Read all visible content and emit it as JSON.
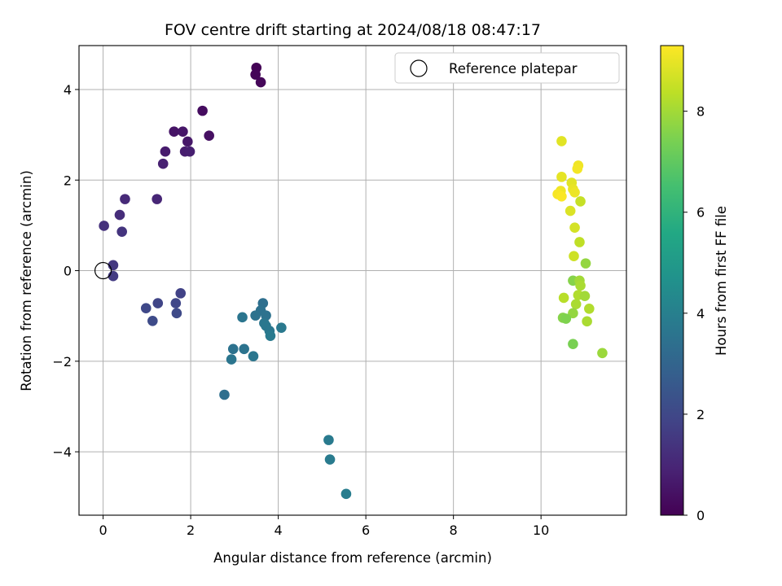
{
  "chart_data": {
    "type": "scatter",
    "title": "FOV centre drift starting at 2024/08/18 08:47:17",
    "xlabel": "Angular distance from reference (arcmin)",
    "ylabel": "Rotation from reference (arcmin)",
    "xlim": [
      -0.55,
      11.95
    ],
    "ylim": [
      -5.4,
      4.97
    ],
    "x_ticks": [
      0,
      2,
      4,
      6,
      8,
      10
    ],
    "y_ticks": [
      -4,
      -2,
      0,
      2,
      4
    ],
    "grid": true,
    "legend": {
      "placement": "upper right",
      "entries": [
        "Reference platepar"
      ]
    },
    "reference_point": {
      "x": 0,
      "y": 0,
      "label": "Reference platepar",
      "marker": "open-circle"
    },
    "colorbar": {
      "label": "Hours from first FF file",
      "range": [
        0,
        9.3
      ],
      "ticks": [
        0,
        2,
        4,
        6,
        8
      ],
      "colormap": "viridis"
    },
    "points": [
      {
        "x": 3.5,
        "y": 4.48,
        "c": 0.05
      },
      {
        "x": 3.48,
        "y": 4.33,
        "c": 0.1
      },
      {
        "x": 3.6,
        "y": 4.16,
        "c": 0.15
      },
      {
        "x": 2.27,
        "y": 3.53,
        "c": 0.3
      },
      {
        "x": 2.42,
        "y": 2.98,
        "c": 0.4
      },
      {
        "x": 1.62,
        "y": 3.07,
        "c": 0.5
      },
      {
        "x": 1.82,
        "y": 3.07,
        "c": 0.55
      },
      {
        "x": 1.93,
        "y": 2.85,
        "c": 0.6
      },
      {
        "x": 1.42,
        "y": 2.63,
        "c": 0.7
      },
      {
        "x": 1.87,
        "y": 2.63,
        "c": 0.75
      },
      {
        "x": 1.98,
        "y": 2.63,
        "c": 0.8
      },
      {
        "x": 1.37,
        "y": 2.36,
        "c": 0.85
      },
      {
        "x": 1.23,
        "y": 1.58,
        "c": 1.0
      },
      {
        "x": 0.5,
        "y": 1.58,
        "c": 1.1
      },
      {
        "x": 0.38,
        "y": 1.23,
        "c": 1.2
      },
      {
        "x": 0.02,
        "y": 0.99,
        "c": 1.3
      },
      {
        "x": 0.43,
        "y": 0.86,
        "c": 1.4
      },
      {
        "x": 0.23,
        "y": 0.12,
        "c": 1.5
      },
      {
        "x": 0.23,
        "y": -0.12,
        "c": 1.6
      },
      {
        "x": 1.77,
        "y": -0.5,
        "c": 1.8
      },
      {
        "x": 1.25,
        "y": -0.72,
        "c": 1.9
      },
      {
        "x": 1.66,
        "y": -0.72,
        "c": 1.95
      },
      {
        "x": 0.98,
        "y": -0.83,
        "c": 2.0
      },
      {
        "x": 1.68,
        "y": -0.94,
        "c": 2.05
      },
      {
        "x": 1.13,
        "y": -1.11,
        "c": 2.1
      },
      {
        "x": 3.65,
        "y": -0.72,
        "c": 3.4
      },
      {
        "x": 3.6,
        "y": -0.88,
        "c": 3.45
      },
      {
        "x": 3.48,
        "y": -0.99,
        "c": 3.5
      },
      {
        "x": 3.72,
        "y": -0.99,
        "c": 3.5
      },
      {
        "x": 3.18,
        "y": -1.03,
        "c": 3.6
      },
      {
        "x": 3.68,
        "y": -1.16,
        "c": 3.65
      },
      {
        "x": 3.72,
        "y": -1.22,
        "c": 3.7
      },
      {
        "x": 3.8,
        "y": -1.33,
        "c": 3.7
      },
      {
        "x": 4.07,
        "y": -1.26,
        "c": 3.75
      },
      {
        "x": 3.82,
        "y": -1.44,
        "c": 3.8
      },
      {
        "x": 2.97,
        "y": -1.73,
        "c": 3.5
      },
      {
        "x": 3.22,
        "y": -1.73,
        "c": 3.55
      },
      {
        "x": 2.93,
        "y": -1.96,
        "c": 3.6
      },
      {
        "x": 3.43,
        "y": -1.89,
        "c": 3.65
      },
      {
        "x": 2.77,
        "y": -2.74,
        "c": 3.4
      },
      {
        "x": 5.15,
        "y": -3.74,
        "c": 3.8
      },
      {
        "x": 5.18,
        "y": -4.17,
        "c": 3.85
      },
      {
        "x": 5.55,
        "y": -4.93,
        "c": 3.9
      },
      {
        "x": 10.47,
        "y": 2.86,
        "c": 8.9
      },
      {
        "x": 10.85,
        "y": 2.32,
        "c": 9.1
      },
      {
        "x": 10.83,
        "y": 2.25,
        "c": 9.15
      },
      {
        "x": 10.47,
        "y": 2.07,
        "c": 8.95
      },
      {
        "x": 10.7,
        "y": 1.94,
        "c": 8.9
      },
      {
        "x": 10.73,
        "y": 1.8,
        "c": 9.0
      },
      {
        "x": 10.77,
        "y": 1.73,
        "c": 9.05
      },
      {
        "x": 10.45,
        "y": 1.76,
        "c": 9.1
      },
      {
        "x": 10.38,
        "y": 1.69,
        "c": 9.2
      },
      {
        "x": 10.47,
        "y": 1.64,
        "c": 9.25
      },
      {
        "x": 10.9,
        "y": 1.53,
        "c": 8.5
      },
      {
        "x": 10.67,
        "y": 1.32,
        "c": 8.8
      },
      {
        "x": 10.77,
        "y": 0.95,
        "c": 8.7
      },
      {
        "x": 10.88,
        "y": 0.63,
        "c": 8.4
      },
      {
        "x": 10.75,
        "y": 0.32,
        "c": 8.6
      },
      {
        "x": 11.02,
        "y": 0.16,
        "c": 7.8
      },
      {
        "x": 10.73,
        "y": -0.22,
        "c": 7.6
      },
      {
        "x": 10.88,
        "y": -0.22,
        "c": 8.0
      },
      {
        "x": 10.9,
        "y": -0.33,
        "c": 8.1
      },
      {
        "x": 10.85,
        "y": -0.54,
        "c": 8.2
      },
      {
        "x": 11.0,
        "y": -0.56,
        "c": 8.0
      },
      {
        "x": 10.52,
        "y": -0.6,
        "c": 8.3
      },
      {
        "x": 10.8,
        "y": -0.74,
        "c": 8.1
      },
      {
        "x": 11.1,
        "y": -0.84,
        "c": 8.2
      },
      {
        "x": 10.73,
        "y": -0.94,
        "c": 7.8
      },
      {
        "x": 10.5,
        "y": -1.04,
        "c": 7.6
      },
      {
        "x": 10.57,
        "y": -1.06,
        "c": 7.5
      },
      {
        "x": 11.05,
        "y": -1.12,
        "c": 8.1
      },
      {
        "x": 10.73,
        "y": -1.62,
        "c": 7.4
      },
      {
        "x": 11.4,
        "y": -1.82,
        "c": 7.9
      }
    ]
  }
}
